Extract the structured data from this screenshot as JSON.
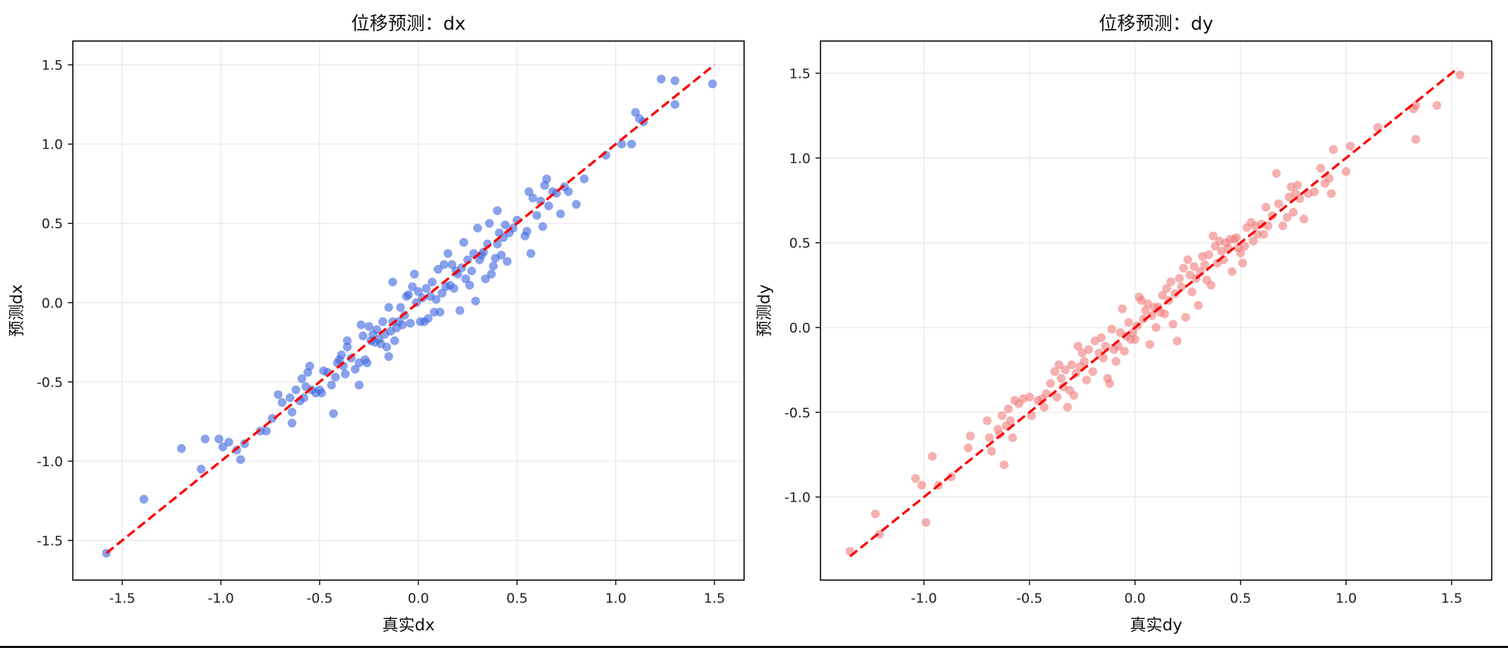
{
  "chart_data": [
    {
      "type": "scatter",
      "title": "位移预测：dx",
      "xlabel": "真实dx",
      "ylabel": "预测dx",
      "xlim": [
        -1.75,
        1.65
      ],
      "ylim": [
        -1.75,
        1.65
      ],
      "xticks": [
        -1.5,
        -1.0,
        -0.5,
        0.0,
        0.5,
        1.0,
        1.5
      ],
      "yticks": [
        -1.5,
        -1.0,
        -0.5,
        0.0,
        0.5,
        1.0,
        1.5
      ],
      "xticklabels": [
        "-1.5",
        "-1.0",
        "-0.5",
        "0.0",
        "0.5",
        "1.0",
        "1.5"
      ],
      "yticklabels": [
        "-1.5",
        "-1.0",
        "-0.5",
        "0.0",
        "0.5",
        "1.0",
        "1.5"
      ],
      "grid": true,
      "point_color": "#4169e1",
      "reference_line": {
        "x": [
          -1.58,
          1.5
        ],
        "y": [
          -1.58,
          1.5
        ],
        "color": "#ff0000",
        "style": "dashed"
      },
      "points": [
        [
          -1.58,
          -1.58
        ],
        [
          -1.39,
          -1.24
        ],
        [
          -1.2,
          -0.92
        ],
        [
          -1.1,
          -1.05
        ],
        [
          -1.08,
          -0.86
        ],
        [
          -1.01,
          -0.86
        ],
        [
          -0.99,
          -0.91
        ],
        [
          -0.96,
          -0.88
        ],
        [
          -0.92,
          -0.93
        ],
        [
          -0.9,
          -0.99
        ],
        [
          -0.88,
          -0.89
        ],
        [
          -0.8,
          -0.81
        ],
        [
          -0.77,
          -0.81
        ],
        [
          -0.74,
          -0.73
        ],
        [
          -0.71,
          -0.58
        ],
        [
          -0.69,
          -0.63
        ],
        [
          -0.65,
          -0.6
        ],
        [
          -0.64,
          -0.76
        ],
        [
          -0.64,
          -0.69
        ],
        [
          -0.62,
          -0.55
        ],
        [
          -0.6,
          -0.62
        ],
        [
          -0.59,
          -0.48
        ],
        [
          -0.58,
          -0.6
        ],
        [
          -0.57,
          -0.53
        ],
        [
          -0.56,
          -0.44
        ],
        [
          -0.55,
          -0.4
        ],
        [
          -0.54,
          -0.55
        ],
        [
          -0.52,
          -0.57
        ],
        [
          -0.5,
          -0.55
        ],
        [
          -0.49,
          -0.57
        ],
        [
          -0.48,
          -0.43
        ],
        [
          -0.46,
          -0.44
        ],
        [
          -0.44,
          -0.52
        ],
        [
          -0.43,
          -0.7
        ],
        [
          -0.42,
          -0.47
        ],
        [
          -0.41,
          -0.38
        ],
        [
          -0.4,
          -0.36
        ],
        [
          -0.39,
          -0.33
        ],
        [
          -0.38,
          -0.4
        ],
        [
          -0.37,
          -0.45
        ],
        [
          -0.36,
          -0.28
        ],
        [
          -0.36,
          -0.24
        ],
        [
          -0.34,
          -0.35
        ],
        [
          -0.32,
          -0.42
        ],
        [
          -0.3,
          -0.38
        ],
        [
          -0.3,
          -0.52
        ],
        [
          -0.29,
          -0.14
        ],
        [
          -0.28,
          -0.21
        ],
        [
          -0.27,
          -0.36
        ],
        [
          -0.26,
          -0.38
        ],
        [
          -0.25,
          -0.15
        ],
        [
          -0.24,
          -0.24
        ],
        [
          -0.23,
          -0.2
        ],
        [
          -0.22,
          -0.25
        ],
        [
          -0.21,
          -0.17
        ],
        [
          -0.2,
          -0.23
        ],
        [
          -0.19,
          -0.26
        ],
        [
          -0.18,
          -0.12
        ],
        [
          -0.17,
          -0.2
        ],
        [
          -0.16,
          -0.28
        ],
        [
          -0.15,
          -0.34
        ],
        [
          -0.15,
          -0.03
        ],
        [
          -0.14,
          -0.18
        ],
        [
          -0.13,
          -0.12
        ],
        [
          -0.13,
          0.13
        ],
        [
          -0.12,
          -0.24
        ],
        [
          -0.11,
          -0.16
        ],
        [
          -0.1,
          -0.12
        ],
        [
          -0.09,
          -0.03
        ],
        [
          -0.08,
          -0.14
        ],
        [
          -0.07,
          -0.08
        ],
        [
          -0.06,
          0.04
        ],
        [
          -0.05,
          0.05
        ],
        [
          -0.04,
          -0.13
        ],
        [
          -0.03,
          0.1
        ],
        [
          -0.02,
          0.18
        ],
        [
          -0.01,
          0.0
        ],
        [
          0.0,
          0.07
        ],
        [
          0.01,
          -0.12
        ],
        [
          0.02,
          0.03
        ],
        [
          0.03,
          -0.12
        ],
        [
          0.04,
          0.09
        ],
        [
          0.05,
          -0.1
        ],
        [
          0.06,
          0.04
        ],
        [
          0.07,
          0.13
        ],
        [
          0.08,
          -0.06
        ],
        [
          0.09,
          0.02
        ],
        [
          0.1,
          0.21
        ],
        [
          0.11,
          -0.06
        ],
        [
          0.12,
          0.06
        ],
        [
          0.13,
          0.24
        ],
        [
          0.14,
          0.1
        ],
        [
          0.15,
          0.31
        ],
        [
          0.16,
          0.11
        ],
        [
          0.17,
          0.24
        ],
        [
          0.18,
          0.09
        ],
        [
          0.19,
          0.2
        ],
        [
          0.2,
          0.18
        ],
        [
          0.21,
          -0.05
        ],
        [
          0.22,
          0.22
        ],
        [
          0.23,
          0.38
        ],
        [
          0.24,
          0.15
        ],
        [
          0.25,
          0.27
        ],
        [
          0.26,
          0.11
        ],
        [
          0.27,
          0.2
        ],
        [
          0.28,
          0.31
        ],
        [
          0.29,
          0.01
        ],
        [
          0.3,
          0.47
        ],
        [
          0.31,
          0.27
        ],
        [
          0.32,
          0.3
        ],
        [
          0.33,
          0.32
        ],
        [
          0.34,
          0.15
        ],
        [
          0.35,
          0.37
        ],
        [
          0.36,
          0.5
        ],
        [
          0.37,
          0.18
        ],
        [
          0.38,
          0.23
        ],
        [
          0.39,
          0.28
        ],
        [
          0.4,
          0.37
        ],
        [
          0.4,
          0.58
        ],
        [
          0.41,
          0.44
        ],
        [
          0.42,
          0.3
        ],
        [
          0.43,
          0.41
        ],
        [
          0.44,
          0.49
        ],
        [
          0.45,
          0.26
        ],
        [
          0.46,
          0.44
        ],
        [
          0.48,
          0.47
        ],
        [
          0.5,
          0.52
        ],
        [
          0.54,
          0.42
        ],
        [
          0.55,
          0.45
        ],
        [
          0.56,
          0.7
        ],
        [
          0.57,
          0.31
        ],
        [
          0.58,
          0.66
        ],
        [
          0.6,
          0.55
        ],
        [
          0.62,
          0.64
        ],
        [
          0.63,
          0.48
        ],
        [
          0.64,
          0.74
        ],
        [
          0.65,
          0.78
        ],
        [
          0.66,
          0.61
        ],
        [
          0.68,
          0.7
        ],
        [
          0.7,
          0.69
        ],
        [
          0.72,
          0.56
        ],
        [
          0.74,
          0.73
        ],
        [
          0.76,
          0.7
        ],
        [
          0.8,
          0.62
        ],
        [
          0.84,
          0.78
        ],
        [
          0.95,
          0.93
        ],
        [
          1.03,
          1.0
        ],
        [
          1.08,
          1.0
        ],
        [
          1.1,
          1.2
        ],
        [
          1.12,
          1.16
        ],
        [
          1.14,
          1.14
        ],
        [
          1.23,
          1.41
        ],
        [
          1.3,
          1.25
        ],
        [
          1.3,
          1.4
        ],
        [
          1.49,
          1.38
        ]
      ]
    },
    {
      "type": "scatter",
      "title": "位移预测：dy",
      "xlabel": "真实dy",
      "ylabel": "预测dy",
      "xlim": [
        -1.49,
        1.69
      ],
      "ylim": [
        -1.49,
        1.69
      ],
      "xticks": [
        -1.0,
        -0.5,
        0.0,
        0.5,
        1.0,
        1.5
      ],
      "yticks": [
        -1.0,
        -0.5,
        0.0,
        0.5,
        1.0,
        1.5
      ],
      "xticklabels": [
        "-1.0",
        "-0.5",
        "0.0",
        "0.5",
        "1.0",
        "1.5"
      ],
      "yticklabels": [
        "-1.0",
        "-0.5",
        "0.0",
        "0.5",
        "1.0",
        "1.5"
      ],
      "grid": true,
      "point_color": "#f08080",
      "reference_line": {
        "x": [
          -1.35,
          1.53
        ],
        "y": [
          -1.35,
          1.53
        ],
        "color": "#ff0000",
        "style": "dashed"
      },
      "points": [
        [
          -1.35,
          -1.32
        ],
        [
          -1.23,
          -1.1
        ],
        [
          -1.21,
          -1.22
        ],
        [
          -1.04,
          -0.89
        ],
        [
          -1.01,
          -0.93
        ],
        [
          -0.99,
          -1.15
        ],
        [
          -0.96,
          -0.76
        ],
        [
          -0.93,
          -0.93
        ],
        [
          -0.87,
          -0.88
        ],
        [
          -0.79,
          -0.71
        ],
        [
          -0.78,
          -0.64
        ],
        [
          -0.7,
          -0.55
        ],
        [
          -0.69,
          -0.65
        ],
        [
          -0.68,
          -0.73
        ],
        [
          -0.65,
          -0.6
        ],
        [
          -0.64,
          -0.63
        ],
        [
          -0.63,
          -0.52
        ],
        [
          -0.62,
          -0.81
        ],
        [
          -0.61,
          -0.58
        ],
        [
          -0.6,
          -0.48
        ],
        [
          -0.59,
          -0.55
        ],
        [
          -0.58,
          -0.65
        ],
        [
          -0.57,
          -0.43
        ],
        [
          -0.55,
          -0.45
        ],
        [
          -0.53,
          -0.42
        ],
        [
          -0.5,
          -0.41
        ],
        [
          -0.49,
          -0.52
        ],
        [
          -0.46,
          -0.43
        ],
        [
          -0.44,
          -0.42
        ],
        [
          -0.43,
          -0.47
        ],
        [
          -0.42,
          -0.39
        ],
        [
          -0.4,
          -0.33
        ],
        [
          -0.38,
          -0.26
        ],
        [
          -0.37,
          -0.41
        ],
        [
          -0.36,
          -0.22
        ],
        [
          -0.35,
          -0.3
        ],
        [
          -0.34,
          -0.35
        ],
        [
          -0.33,
          -0.25
        ],
        [
          -0.32,
          -0.47
        ],
        [
          -0.31,
          -0.37
        ],
        [
          -0.3,
          -0.22
        ],
        [
          -0.29,
          -0.4
        ],
        [
          -0.28,
          -0.27
        ],
        [
          -0.27,
          -0.11
        ],
        [
          -0.26,
          -0.23
        ],
        [
          -0.25,
          -0.15
        ],
        [
          -0.24,
          -0.2
        ],
        [
          -0.23,
          -0.31
        ],
        [
          -0.22,
          -0.13
        ],
        [
          -0.2,
          -0.26
        ],
        [
          -0.19,
          -0.08
        ],
        [
          -0.17,
          -0.15
        ],
        [
          -0.16,
          -0.06
        ],
        [
          -0.15,
          -0.18
        ],
        [
          -0.14,
          -0.11
        ],
        [
          -0.13,
          -0.3
        ],
        [
          -0.12,
          -0.33
        ],
        [
          -0.11,
          -0.01
        ],
        [
          -0.1,
          -0.13
        ],
        [
          -0.09,
          -0.2
        ],
        [
          -0.08,
          -0.11
        ],
        [
          -0.07,
          -0.03
        ],
        [
          -0.06,
          0.11
        ],
        [
          -0.05,
          -0.14
        ],
        [
          -0.04,
          -0.05
        ],
        [
          -0.03,
          0.03
        ],
        [
          -0.02,
          -0.07
        ],
        [
          -0.01,
          -0.03
        ],
        [
          0.0,
          -0.07
        ],
        [
          0.01,
          0.01
        ],
        [
          0.02,
          0.18
        ],
        [
          0.03,
          0.16
        ],
        [
          0.04,
          0.05
        ],
        [
          0.05,
          0.1
        ],
        [
          0.06,
          0.14
        ],
        [
          0.07,
          -0.1
        ],
        [
          0.08,
          0.07
        ],
        [
          0.09,
          0.12
        ],
        [
          0.1,
          0.0
        ],
        [
          0.11,
          0.12
        ],
        [
          0.12,
          0.09
        ],
        [
          0.13,
          0.19
        ],
        [
          0.14,
          0.08
        ],
        [
          0.15,
          0.23
        ],
        [
          0.16,
          0.16
        ],
        [
          0.17,
          0.27
        ],
        [
          0.18,
          0.02
        ],
        [
          0.19,
          0.2
        ],
        [
          0.2,
          -0.08
        ],
        [
          0.21,
          0.29
        ],
        [
          0.22,
          0.24
        ],
        [
          0.23,
          0.35
        ],
        [
          0.24,
          0.06
        ],
        [
          0.25,
          0.4
        ],
        [
          0.26,
          0.31
        ],
        [
          0.27,
          0.21
        ],
        [
          0.28,
          0.36
        ],
        [
          0.29,
          0.29
        ],
        [
          0.3,
          0.13
        ],
        [
          0.31,
          0.33
        ],
        [
          0.32,
          0.42
        ],
        [
          0.33,
          0.37
        ],
        [
          0.34,
          0.28
        ],
        [
          0.35,
          0.43
        ],
        [
          0.36,
          0.25
        ],
        [
          0.37,
          0.54
        ],
        [
          0.38,
          0.48
        ],
        [
          0.39,
          0.38
        ],
        [
          0.4,
          0.51
        ],
        [
          0.41,
          0.45
        ],
        [
          0.42,
          0.4
        ],
        [
          0.43,
          0.5
        ],
        [
          0.44,
          0.47
        ],
        [
          0.45,
          0.52
        ],
        [
          0.46,
          0.33
        ],
        [
          0.47,
          0.52
        ],
        [
          0.48,
          0.53
        ],
        [
          0.49,
          0.47
        ],
        [
          0.5,
          0.44
        ],
        [
          0.51,
          0.38
        ],
        [
          0.52,
          0.48
        ],
        [
          0.53,
          0.59
        ],
        [
          0.55,
          0.62
        ],
        [
          0.56,
          0.51
        ],
        [
          0.57,
          0.6
        ],
        [
          0.58,
          0.55
        ],
        [
          0.6,
          0.61
        ],
        [
          0.61,
          0.55
        ],
        [
          0.62,
          0.71
        ],
        [
          0.63,
          0.6
        ],
        [
          0.65,
          0.66
        ],
        [
          0.67,
          0.91
        ],
        [
          0.68,
          0.73
        ],
        [
          0.7,
          0.6
        ],
        [
          0.72,
          0.65
        ],
        [
          0.73,
          0.77
        ],
        [
          0.74,
          0.83
        ],
        [
          0.75,
          0.68
        ],
        [
          0.76,
          0.79
        ],
        [
          0.77,
          0.84
        ],
        [
          0.78,
          0.76
        ],
        [
          0.8,
          0.64
        ],
        [
          0.82,
          0.79
        ],
        [
          0.85,
          0.8
        ],
        [
          0.88,
          0.94
        ],
        [
          0.9,
          0.85
        ],
        [
          0.92,
          0.88
        ],
        [
          0.93,
          0.79
        ],
        [
          0.94,
          1.05
        ],
        [
          1.0,
          0.92
        ],
        [
          1.02,
          1.07
        ],
        [
          1.15,
          1.18
        ],
        [
          1.32,
          1.29
        ],
        [
          1.33,
          1.11
        ],
        [
          1.33,
          1.31
        ],
        [
          1.43,
          1.31
        ],
        [
          1.54,
          1.49
        ]
      ]
    }
  ]
}
